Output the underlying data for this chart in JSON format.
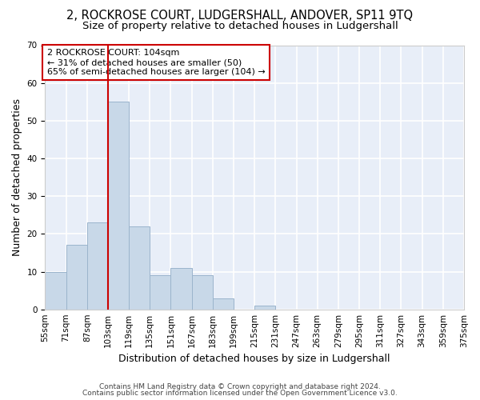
{
  "title_line1": "2, ROCKROSE COURT, LUDGERSHALL, ANDOVER, SP11 9TQ",
  "title_line2": "Size of property relative to detached houses in Ludgershall",
  "xlabel": "Distribution of detached houses by size in Ludgershall",
  "ylabel": "Number of detached properties",
  "bar_values": [
    10,
    17,
    23,
    55,
    22,
    9,
    11,
    9,
    3,
    0,
    1,
    0,
    0,
    0,
    0,
    0,
    0,
    0,
    0,
    0
  ],
  "bin_labels": [
    "55sqm",
    "71sqm",
    "87sqm",
    "103sqm",
    "119sqm",
    "135sqm",
    "151sqm",
    "167sqm",
    "183sqm",
    "199sqm",
    "215sqm",
    "231sqm",
    "247sqm",
    "263sqm",
    "279sqm",
    "295sqm",
    "311sqm",
    "327sqm",
    "343sqm",
    "359sqm",
    "375sqm"
  ],
  "bar_color": "#c8d8e8",
  "bar_edgecolor": "#9bb4cc",
  "bg_color": "#e8eef8",
  "grid_color": "#ffffff",
  "vline_x": 3,
  "vline_color": "#cc0000",
  "annotation_text": "2 ROCKROSE COURT: 104sqm\n← 31% of detached houses are smaller (50)\n65% of semi-detached houses are larger (104) →",
  "annotation_box_color": "#ffffff",
  "annotation_box_edgecolor": "#cc0000",
  "ylim": [
    0,
    70
  ],
  "yticks": [
    0,
    10,
    20,
    30,
    40,
    50,
    60,
    70
  ],
  "footer_line1": "Contains HM Land Registry data © Crown copyright and database right 2024.",
  "footer_line2": "Contains public sector information licensed under the Open Government Licence v3.0.",
  "title_fontsize": 10.5,
  "subtitle_fontsize": 9.5,
  "axis_label_fontsize": 9,
  "tick_fontsize": 7.5,
  "annotation_fontsize": 8,
  "footer_fontsize": 6.5
}
